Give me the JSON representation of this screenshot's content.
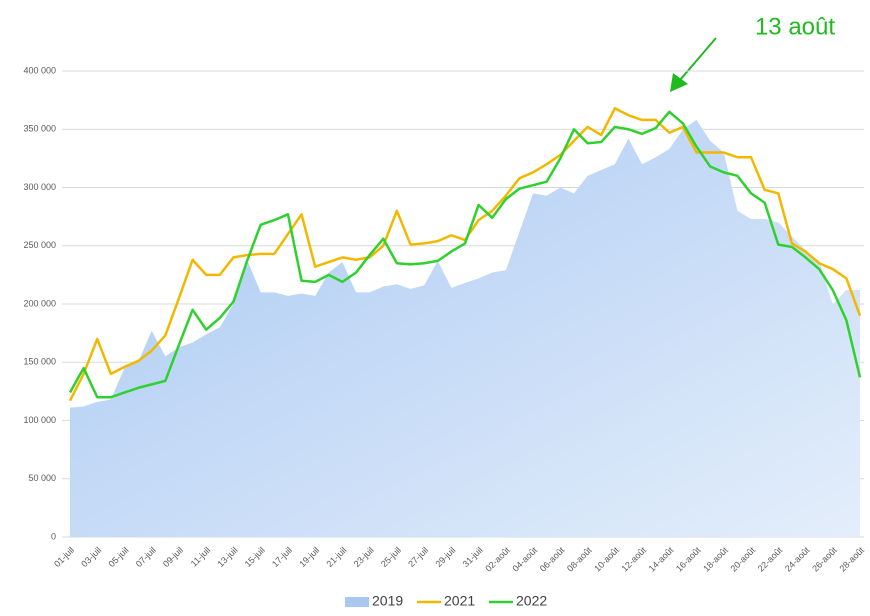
{
  "chart_data": {
    "type": "line",
    "annotation": "13 août",
    "categories": [
      "01-juil",
      null,
      "03-juil",
      null,
      "05-juil",
      null,
      "07-juil",
      null,
      "09-juil",
      null,
      "11-juil",
      null,
      "13-juil",
      null,
      "15-juil",
      null,
      "17-juil",
      null,
      "19-juil",
      null,
      "21-juil",
      null,
      "23-juil",
      null,
      "25-juil",
      null,
      "27-juil",
      null,
      "29-juil",
      null,
      "31-juil",
      null,
      "02-août",
      null,
      "04-août",
      null,
      "06-août",
      null,
      "08-août",
      null,
      "10-août",
      null,
      "12-août",
      null,
      "14-août",
      null,
      "16-août",
      null,
      "18-août",
      null,
      "20-août",
      null,
      "22-août",
      null,
      "24-août",
      null,
      "26-août",
      null,
      "28-août"
    ],
    "series": [
      {
        "name": "2019",
        "style": "area",
        "color": "#a8c8f2",
        "values": [
          111000,
          112000,
          116000,
          118000,
          145000,
          150000,
          177000,
          155000,
          163000,
          167000,
          174000,
          180000,
          200000,
          238000,
          210000,
          210000,
          207000,
          209000,
          207000,
          227000,
          236000,
          210000,
          210000,
          215000,
          217000,
          213000,
          216000,
          237000,
          214000,
          218000,
          222000,
          227000,
          229000,
          262000,
          295000,
          293000,
          300000,
          295000,
          310000,
          315000,
          320000,
          342000,
          320000,
          326000,
          333000,
          350000,
          358000,
          340000,
          330000,
          280000,
          273000,
          273000,
          270000,
          258000,
          246000,
          237000,
          200000,
          212000,
          212000
        ]
      },
      {
        "name": "2021",
        "style": "line",
        "color": "#f2b800",
        "values": [
          117000,
          140000,
          170000,
          140000,
          146000,
          151000,
          160000,
          173000,
          205000,
          238000,
          225000,
          225000,
          240000,
          242000,
          243000,
          243000,
          260000,
          277000,
          232000,
          236000,
          240000,
          238000,
          240000,
          250000,
          280000,
          251000,
          252000,
          254000,
          259000,
          255000,
          272000,
          280000,
          293000,
          308000,
          313000,
          320000,
          328000,
          340000,
          352000,
          345000,
          368000,
          362000,
          358000,
          358000,
          347000,
          352000,
          330000,
          330000,
          330000,
          326000,
          326000,
          298000,
          295000,
          252000,
          245000,
          235000,
          230000,
          222000,
          190000
        ]
      },
      {
        "name": "2022",
        "style": "line",
        "color": "#2ed12e",
        "values": [
          124000,
          145000,
          120000,
          120000,
          124000,
          128000,
          131000,
          134000,
          165000,
          195000,
          178000,
          188000,
          202000,
          237000,
          268000,
          272000,
          277000,
          220000,
          219000,
          225000,
          219000,
          227000,
          242000,
          256000,
          235000,
          234000,
          235000,
          237000,
          245000,
          252000,
          285000,
          274000,
          290000,
          299000,
          302000,
          305000,
          325000,
          350000,
          338000,
          339000,
          352000,
          350000,
          346000,
          351000,
          365000,
          355000,
          335000,
          318000,
          313000,
          310000,
          295000,
          287000,
          251000,
          249000,
          240000,
          230000,
          212000,
          186000,
          137000
        ]
      }
    ],
    "ylim": [
      0,
      400000
    ],
    "yticks": [
      0,
      {
        "value": 50000,
        "label": "50 000"
      },
      {
        "value": 100000,
        "label": "100 000"
      },
      {
        "value": 150000,
        "label": "150 000"
      },
      {
        "value": 200000,
        "label": "200 000"
      },
      {
        "value": 250000,
        "label": "250 000"
      },
      {
        "value": 300000,
        "label": "300 000"
      },
      {
        "value": 350000,
        "label": "350 000"
      },
      {
        "value": 400000,
        "label": "400 000"
      }
    ],
    "grid": true
  }
}
